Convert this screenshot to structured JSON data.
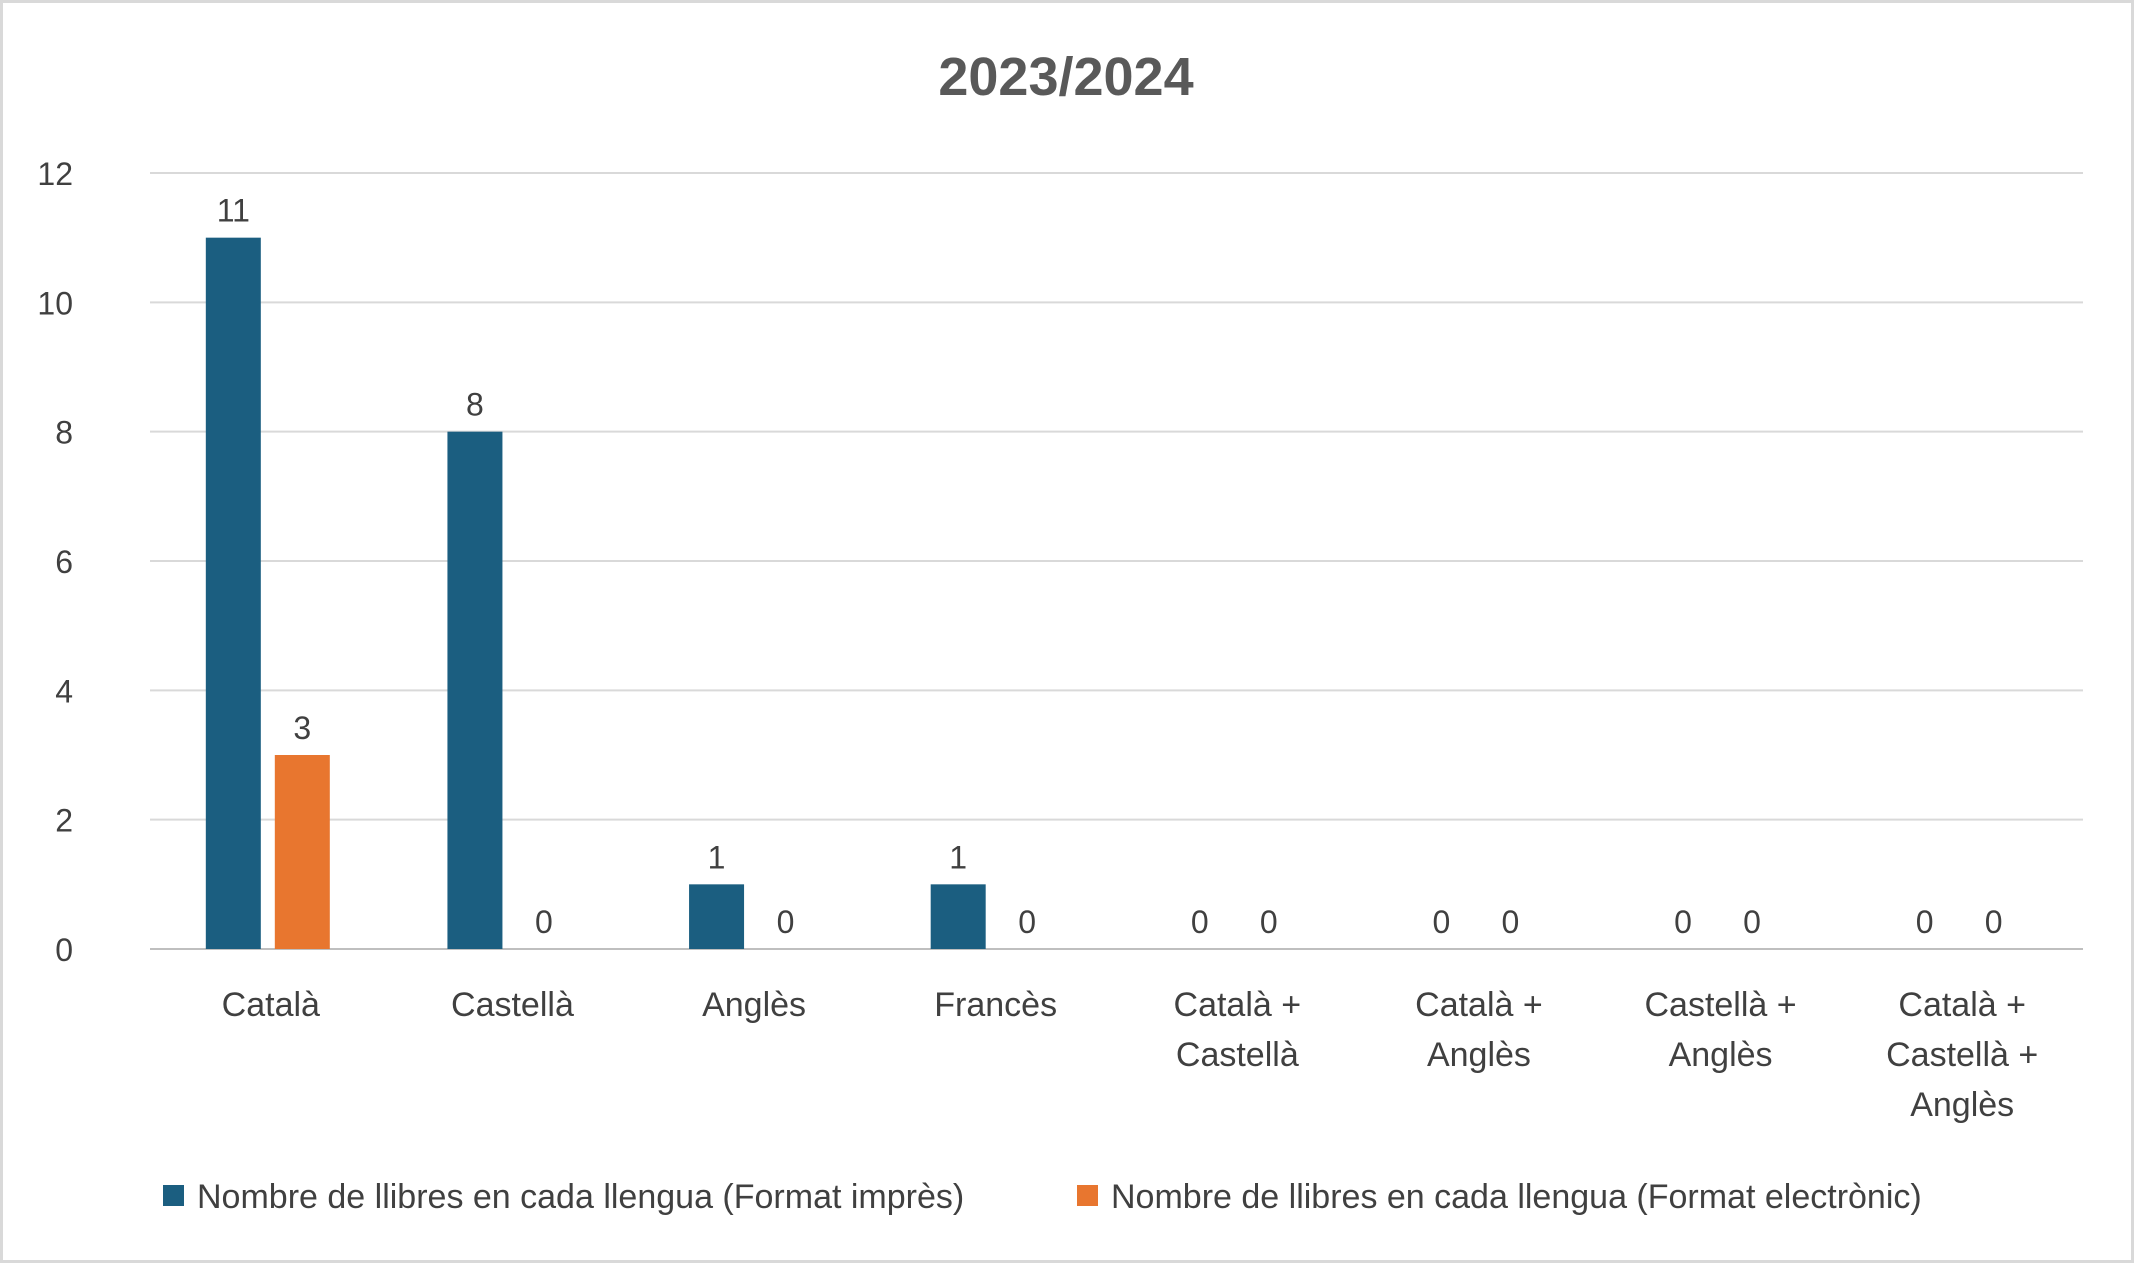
{
  "chart_data": {
    "type": "bar",
    "title": "2023/2024",
    "xlabel": "",
    "ylabel": "",
    "ylim": [
      0,
      12
    ],
    "yticks": [
      "0",
      "2",
      "4",
      "6",
      "8",
      "10",
      "12"
    ],
    "grid": true,
    "legend_position": "bottom",
    "categories": [
      [
        "Català"
      ],
      [
        "Castellà"
      ],
      [
        "Anglès"
      ],
      [
        "Francès"
      ],
      [
        "Català +",
        "Castellà"
      ],
      [
        "Català +",
        "Anglès"
      ],
      [
        "Castellà +",
        "Anglès"
      ],
      [
        "Català +",
        "Castellà +",
        "Anglès"
      ]
    ],
    "series": [
      {
        "name": "Nombre de llibres en cada llengua (Format imprès)",
        "color": "#1b5e80",
        "values": [
          11,
          8,
          1,
          1,
          0,
          0,
          0,
          0
        ]
      },
      {
        "name": "Nombre de llibres en cada llengua (Format electrònic)",
        "color": "#e8762f",
        "values": [
          3,
          0,
          0,
          0,
          0,
          0,
          0,
          0
        ]
      }
    ]
  }
}
